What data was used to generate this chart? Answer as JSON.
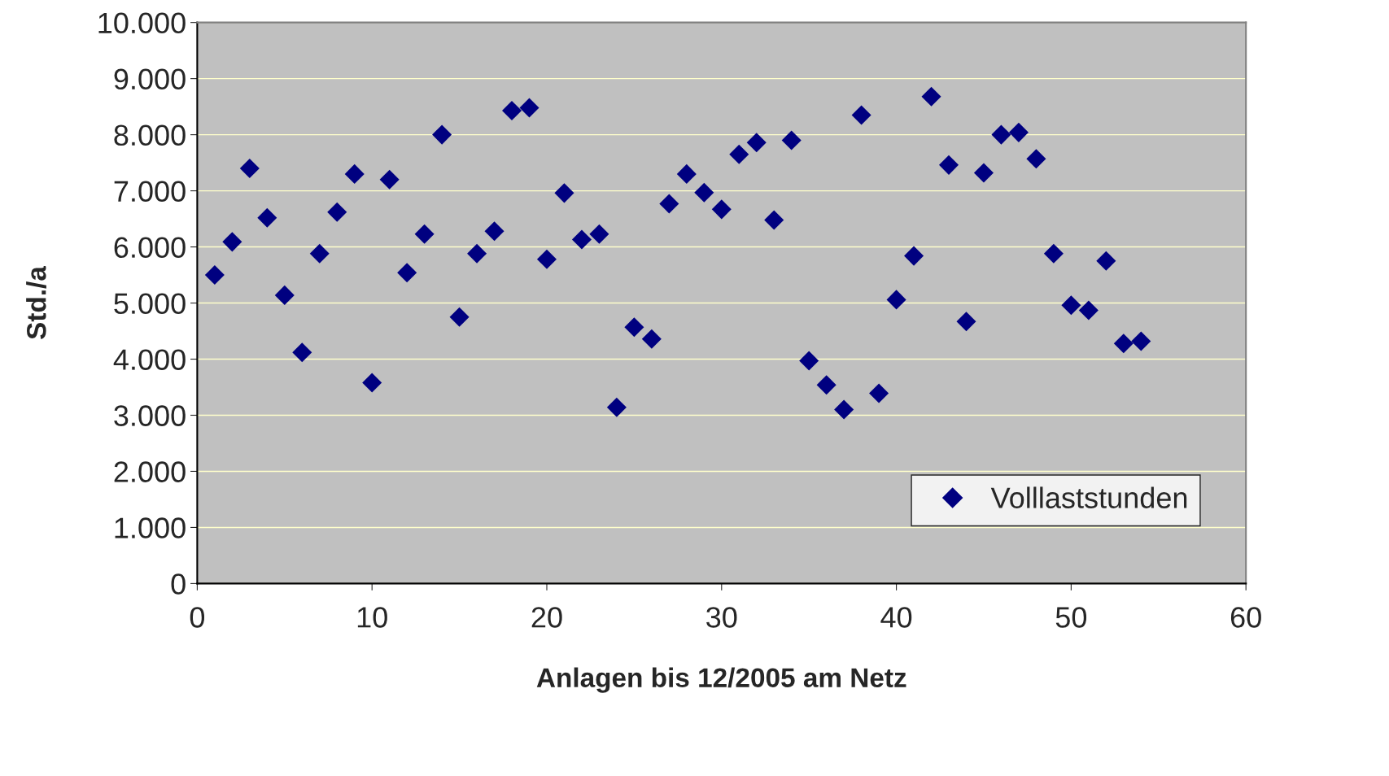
{
  "chart_data": {
    "type": "scatter",
    "xlabel": "Anlagen bis 12/2005 am Netz",
    "ylabel": "Std./a",
    "x": [
      1,
      2,
      3,
      4,
      5,
      6,
      7,
      8,
      9,
      10,
      11,
      12,
      13,
      14,
      15,
      16,
      17,
      18,
      19,
      20,
      21,
      22,
      23,
      24,
      25,
      26,
      27,
      28,
      29,
      30,
      31,
      32,
      33,
      34,
      35,
      36,
      37,
      38,
      39,
      40,
      41,
      42,
      43,
      44,
      45,
      46,
      47,
      48,
      49,
      50,
      51,
      52,
      53,
      54
    ],
    "series": [
      {
        "name": "Volllaststunden",
        "color": "#000080",
        "values": [
          5500,
          6090,
          7400,
          6520,
          5140,
          4120,
          5880,
          6620,
          7300,
          3580,
          7200,
          5540,
          6230,
          8000,
          4750,
          5880,
          6280,
          8430,
          8480,
          5780,
          6960,
          6130,
          6230,
          3140,
          4570,
          4360,
          6770,
          7300,
          6970,
          6670,
          7650,
          7860,
          6480,
          7900,
          3970,
          3540,
          3100,
          8350,
          3390,
          5060,
          5840,
          8680,
          7460,
          4670,
          7320,
          8000,
          8040,
          7570,
          5880,
          4960,
          4870,
          5750,
          4280,
          4320
        ]
      }
    ],
    "xlim": [
      0,
      60
    ],
    "xticks": [
      0,
      10,
      20,
      30,
      40,
      50,
      60
    ],
    "ylim": [
      0,
      10000
    ],
    "yticks": [
      0,
      {
        "value": 1000,
        "label": "1.000"
      },
      {
        "value": 2000,
        "label": "2.000"
      },
      {
        "value": 3000,
        "label": "3.000"
      },
      {
        "value": 4000,
        "label": "4.000"
      },
      {
        "value": 5000,
        "label": "5.000"
      },
      {
        "value": 6000,
        "label": "6.000"
      },
      {
        "value": 7000,
        "label": "7.000"
      },
      {
        "value": 8000,
        "label": "8.000"
      },
      {
        "value": 9000,
        "label": "9.000"
      },
      {
        "value": 10000,
        "label": "10.000"
      }
    ],
    "grid": "y",
    "legend": "bottom right",
    "marker": "diamond"
  }
}
